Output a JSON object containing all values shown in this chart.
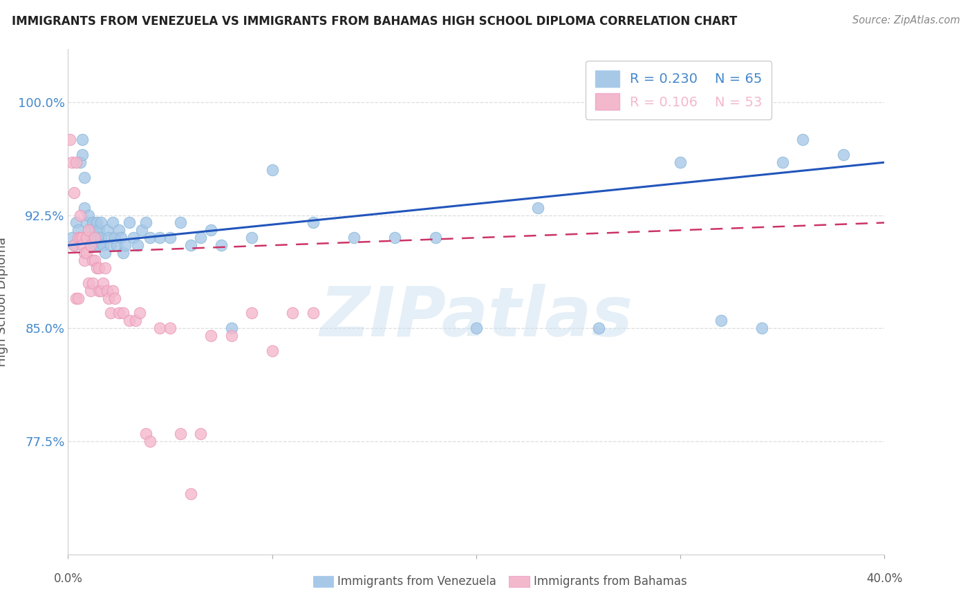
{
  "title": "IMMIGRANTS FROM VENEZUELA VS IMMIGRANTS FROM BAHAMAS HIGH SCHOOL DIPLOMA CORRELATION CHART",
  "source": "Source: ZipAtlas.com",
  "ylabel": "High School Diploma",
  "xlim": [
    0.0,
    0.4
  ],
  "ylim": [
    0.7,
    1.035
  ],
  "venezuela_color": "#a8c8e8",
  "bahamas_color": "#f4b8cc",
  "trend_venezuela_color": "#2255bb",
  "trend_bahamas_color": "#cc3366",
  "R_venezuela": 0.23,
  "N_venezuela": 65,
  "R_bahamas": 0.106,
  "N_bahamas": 53,
  "venezuela_x": [
    0.002,
    0.003,
    0.004,
    0.005,
    0.006,
    0.007,
    0.007,
    0.008,
    0.008,
    0.009,
    0.01,
    0.01,
    0.011,
    0.011,
    0.012,
    0.012,
    0.013,
    0.013,
    0.014,
    0.014,
    0.015,
    0.015,
    0.016,
    0.016,
    0.017,
    0.018,
    0.019,
    0.02,
    0.021,
    0.022,
    0.023,
    0.024,
    0.025,
    0.026,
    0.027,
    0.028,
    0.03,
    0.032,
    0.034,
    0.036,
    0.038,
    0.04,
    0.045,
    0.05,
    0.055,
    0.06,
    0.065,
    0.07,
    0.075,
    0.08,
    0.09,
    0.1,
    0.12,
    0.14,
    0.16,
    0.18,
    0.2,
    0.23,
    0.26,
    0.3,
    0.32,
    0.34,
    0.35,
    0.36,
    0.38
  ],
  "venezuela_y": [
    0.91,
    0.905,
    0.92,
    0.915,
    0.96,
    0.975,
    0.965,
    0.95,
    0.93,
    0.92,
    0.925,
    0.91,
    0.915,
    0.905,
    0.91,
    0.92,
    0.905,
    0.915,
    0.92,
    0.91,
    0.905,
    0.915,
    0.91,
    0.92,
    0.905,
    0.9,
    0.915,
    0.91,
    0.905,
    0.92,
    0.91,
    0.905,
    0.915,
    0.91,
    0.9,
    0.905,
    0.92,
    0.91,
    0.905,
    0.915,
    0.92,
    0.91,
    0.91,
    0.91,
    0.92,
    0.905,
    0.91,
    0.915,
    0.905,
    0.85,
    0.91,
    0.955,
    0.92,
    0.91,
    0.91,
    0.91,
    0.85,
    0.93,
    0.85,
    0.96,
    0.855,
    0.85,
    0.96,
    0.975,
    0.965
  ],
  "bahamas_x": [
    0.001,
    0.002,
    0.003,
    0.003,
    0.004,
    0.004,
    0.005,
    0.005,
    0.006,
    0.006,
    0.007,
    0.007,
    0.008,
    0.008,
    0.009,
    0.009,
    0.01,
    0.01,
    0.011,
    0.011,
    0.012,
    0.012,
    0.013,
    0.013,
    0.014,
    0.015,
    0.015,
    0.016,
    0.017,
    0.018,
    0.019,
    0.02,
    0.021,
    0.022,
    0.023,
    0.025,
    0.027,
    0.03,
    0.033,
    0.035,
    0.038,
    0.04,
    0.045,
    0.05,
    0.055,
    0.06,
    0.065,
    0.07,
    0.08,
    0.09,
    0.1,
    0.11,
    0.12
  ],
  "bahamas_y": [
    0.975,
    0.96,
    0.94,
    0.905,
    0.87,
    0.96,
    0.87,
    0.91,
    0.925,
    0.91,
    0.91,
    0.905,
    0.9,
    0.895,
    0.9,
    0.91,
    0.88,
    0.915,
    0.875,
    0.905,
    0.895,
    0.88,
    0.91,
    0.895,
    0.89,
    0.875,
    0.89,
    0.875,
    0.88,
    0.89,
    0.875,
    0.87,
    0.86,
    0.875,
    0.87,
    0.86,
    0.86,
    0.855,
    0.855,
    0.86,
    0.78,
    0.775,
    0.85,
    0.85,
    0.78,
    0.74,
    0.78,
    0.845,
    0.845,
    0.86,
    0.835,
    0.86,
    0.86
  ],
  "trend_ven_x0": 0.0,
  "trend_ven_y0": 0.905,
  "trend_ven_x1": 0.4,
  "trend_ven_y1": 0.96,
  "trend_bah_x0": 0.0,
  "trend_bah_y0": 0.9,
  "trend_bah_x1": 0.4,
  "trend_bah_y1": 0.92,
  "background_color": "#ffffff",
  "grid_color": "#dddddd",
  "tick_color": "#4488cc",
  "watermark": "ZIPatlas"
}
